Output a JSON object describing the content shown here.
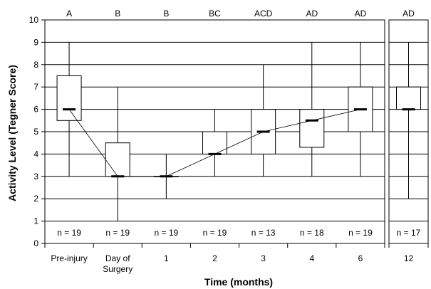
{
  "chart_data": {
    "type": "box",
    "xlabel": "Time (months)",
    "ylabel": "Activity Level (Tegner Score)",
    "ylim": [
      0,
      10
    ],
    "yticks": [
      "0",
      "1",
      "2",
      "3",
      "4",
      "5",
      "6",
      "7",
      "8",
      "9",
      "10"
    ],
    "grid": true,
    "categories": [
      {
        "label": [
          "Pre-injury"
        ],
        "sig": "A",
        "n": "n = 19",
        "min": 3,
        "q1": 5.5,
        "median": 6,
        "q3": 7.5,
        "max": 9
      },
      {
        "label": [
          "Day of",
          "Surgery"
        ],
        "sig": "B",
        "n": "n = 19",
        "min": 1,
        "q1": 3,
        "median": 3,
        "q3": 4.5,
        "max": 7
      },
      {
        "label": [
          "1"
        ],
        "sig": "B",
        "n": "n = 19",
        "min": 2,
        "q1": 3,
        "median": 3,
        "q3": 3,
        "max": 4
      },
      {
        "label": [
          "2"
        ],
        "sig": "BC",
        "n": "n = 19",
        "min": 3,
        "q1": 4,
        "median": 4,
        "q3": 5,
        "max": 6
      },
      {
        "label": [
          "3"
        ],
        "sig": "ACD",
        "n": "n = 13",
        "min": 3,
        "q1": 4,
        "median": 5,
        "q3": 6,
        "max": 8
      },
      {
        "label": [
          "4"
        ],
        "sig": "AD",
        "n": "n = 18",
        "min": 3,
        "q1": 4.3,
        "median": 5.5,
        "q3": 6,
        "max": 9
      },
      {
        "label": [
          "6"
        ],
        "sig": "AD",
        "n": "n = 19",
        "min": 3,
        "q1": 5,
        "median": 6,
        "q3": 7,
        "max": 9
      },
      {
        "label": [
          "12"
        ],
        "sig": "AD",
        "n": "n = 17",
        "min": 2,
        "q1": 6,
        "median": 6,
        "q3": 7,
        "max": 9
      }
    ],
    "median_line_connects": [
      "Pre-injury",
      "Day of Surgery",
      "1",
      "2",
      "3",
      "4",
      "6"
    ]
  }
}
